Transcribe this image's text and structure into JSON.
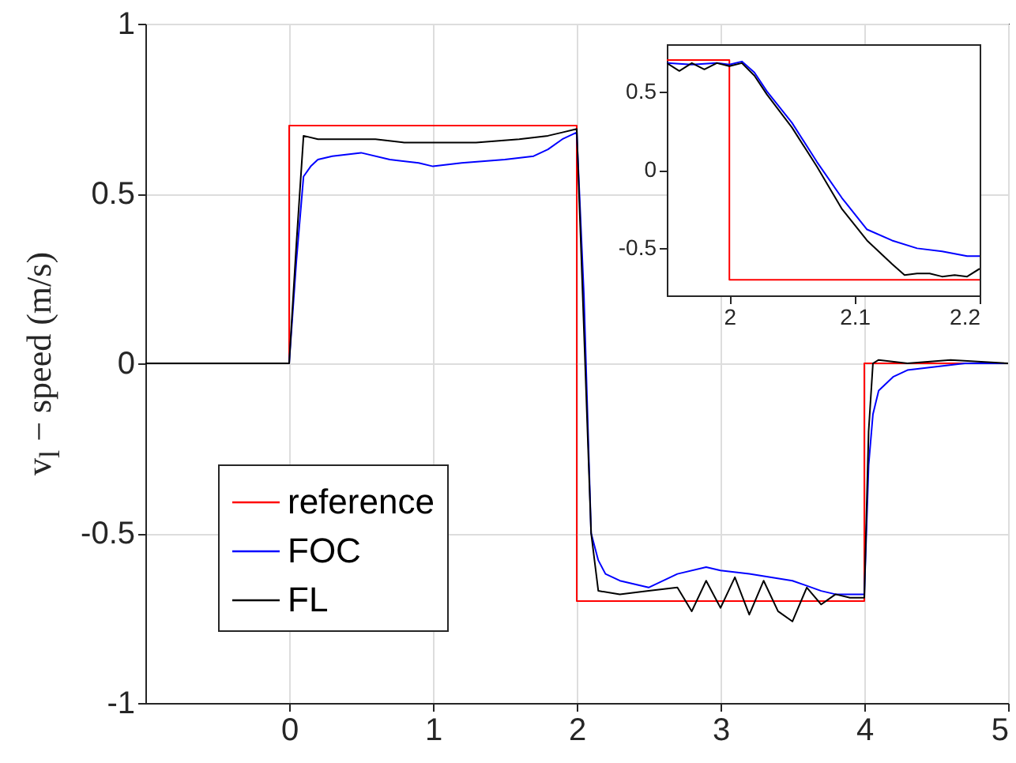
{
  "chart_data": [
    {
      "type": "line",
      "ylabel": "v$_{l}$ − speed (m/s)",
      "xlim": [
        -1,
        5
      ],
      "xticks": [
        0,
        1,
        2,
        3,
        4,
        5
      ],
      "ylim": [
        -1,
        1
      ],
      "yticks": [
        -1,
        -0.5,
        0,
        0.5,
        1
      ],
      "grid": true,
      "legend": "bottom left",
      "line_style": "solid",
      "series": [
        {
          "name": "reference",
          "color": "#ff0000",
          "x": [
            -1,
            0,
            0,
            2,
            2,
            4,
            4,
            5
          ],
          "values": [
            0,
            0,
            0.7,
            0.7,
            -0.7,
            -0.7,
            0,
            0
          ]
        },
        {
          "name": "FOC",
          "color": "#0000ff",
          "x": [
            -1,
            0,
            0.05,
            0.1,
            0.15,
            0.2,
            0.3,
            0.5,
            0.7,
            0.9,
            1.0,
            1.2,
            1.5,
            1.7,
            1.8,
            1.9,
            2.0,
            2.05,
            2.1,
            2.15,
            2.2,
            2.3,
            2.5,
            2.7,
            2.9,
            3.0,
            3.2,
            3.5,
            3.7,
            3.8,
            3.9,
            4.0,
            4.03,
            4.06,
            4.1,
            4.2,
            4.3,
            4.5,
            4.7,
            5
          ],
          "values": [
            0,
            0,
            0.3,
            0.55,
            0.58,
            0.6,
            0.61,
            0.62,
            0.6,
            0.59,
            0.58,
            0.59,
            0.6,
            0.61,
            0.63,
            0.66,
            0.68,
            0.2,
            -0.5,
            -0.58,
            -0.62,
            -0.64,
            -0.66,
            -0.62,
            -0.6,
            -0.61,
            -0.62,
            -0.64,
            -0.67,
            -0.68,
            -0.68,
            -0.68,
            -0.3,
            -0.15,
            -0.08,
            -0.04,
            -0.02,
            -0.01,
            0,
            0
          ]
        },
        {
          "name": "FL",
          "color": "#000000",
          "x": [
            -1,
            0,
            0.05,
            0.1,
            0.2,
            0.4,
            0.6,
            0.8,
            1.0,
            1.3,
            1.6,
            1.8,
            1.9,
            2.0,
            2.05,
            2.1,
            2.15,
            2.3,
            2.5,
            2.7,
            2.8,
            2.9,
            3.0,
            3.1,
            3.2,
            3.3,
            3.4,
            3.5,
            3.6,
            3.7,
            3.8,
            3.9,
            4.0,
            4.03,
            4.06,
            4.1,
            4.3,
            4.6,
            5
          ],
          "values": [
            0,
            0,
            0.35,
            0.67,
            0.66,
            0.66,
            0.66,
            0.65,
            0.65,
            0.65,
            0.66,
            0.67,
            0.68,
            0.69,
            0.1,
            -0.5,
            -0.67,
            -0.68,
            -0.67,
            -0.66,
            -0.73,
            -0.64,
            -0.72,
            -0.63,
            -0.74,
            -0.64,
            -0.73,
            -0.76,
            -0.66,
            -0.71,
            -0.68,
            -0.69,
            -0.69,
            -0.2,
            0.0,
            0.01,
            0.0,
            0.01,
            0
          ]
        }
      ]
    },
    {
      "type": "line",
      "xlim": [
        1.95,
        2.2
      ],
      "xticks": [
        2,
        2.1,
        2.2
      ],
      "ylim": [
        -0.8,
        0.8
      ],
      "yticks": [
        -0.5,
        0,
        0.5
      ],
      "line_style": "solid",
      "series": [
        {
          "color": "#ff0000",
          "x": [
            1.95,
            2.0,
            2.0,
            2.2
          ],
          "values": [
            0.7,
            0.7,
            -0.7,
            -0.7
          ]
        },
        {
          "color": "#0000ff",
          "x": [
            1.95,
            1.97,
            1.99,
            2.0,
            2.01,
            2.02,
            2.03,
            2.05,
            2.07,
            2.09,
            2.11,
            2.13,
            2.15,
            2.17,
            2.19,
            2.2
          ],
          "values": [
            0.68,
            0.67,
            0.68,
            0.67,
            0.69,
            0.62,
            0.5,
            0.3,
            0.05,
            -0.18,
            -0.38,
            -0.45,
            -0.5,
            -0.52,
            -0.55,
            -0.55
          ]
        },
        {
          "color": "#000000",
          "x": [
            1.95,
            1.96,
            1.97,
            1.98,
            1.99,
            2.0,
            2.01,
            2.02,
            2.03,
            2.05,
            2.07,
            2.09,
            2.11,
            2.13,
            2.14,
            2.15,
            2.16,
            2.17,
            2.18,
            2.19,
            2.2
          ],
          "values": [
            0.68,
            0.63,
            0.68,
            0.64,
            0.68,
            0.66,
            0.68,
            0.6,
            0.48,
            0.27,
            0.02,
            -0.25,
            -0.45,
            -0.6,
            -0.67,
            -0.66,
            -0.66,
            -0.68,
            -0.67,
            -0.68,
            -0.63
          ]
        }
      ]
    }
  ]
}
